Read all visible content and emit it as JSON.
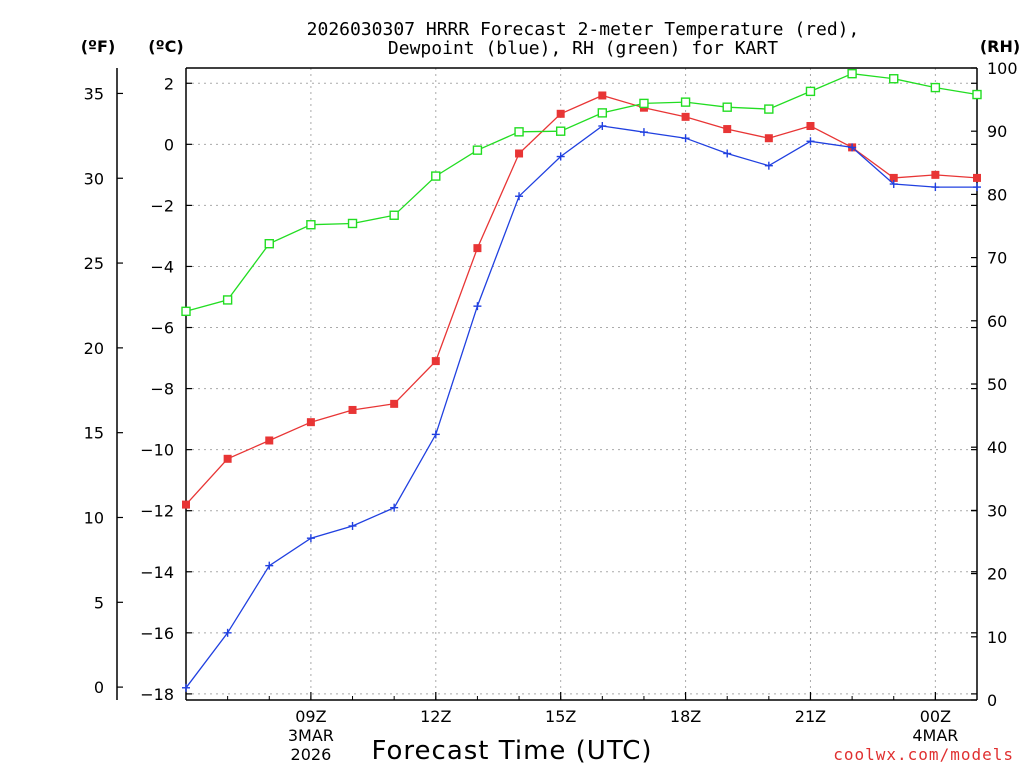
{
  "chart_data": {
    "type": "line",
    "title_line1": "2026030307 HRRR Forecast 2-meter Temperature (red),",
    "title_line2": "Dewpoint (blue), RH (green) for KART",
    "xlabel": "Forecast Time (UTC)",
    "units": {
      "fahrenheit": "(ºF)",
      "celsius": "(ºC)",
      "rh": "(RH)"
    },
    "x_hours": [
      6,
      7,
      8,
      9,
      10,
      11,
      12,
      13,
      14,
      15,
      16,
      17,
      18,
      19,
      20,
      21,
      22,
      23,
      24,
      25
    ],
    "x_ticks": [
      {
        "hour": 9,
        "label": "09Z",
        "sub1": "3MAR",
        "sub2": "2026"
      },
      {
        "hour": 12,
        "label": "12Z"
      },
      {
        "hour": 15,
        "label": "15Z"
      },
      {
        "hour": 18,
        "label": "18Z"
      },
      {
        "hour": 21,
        "label": "21Z"
      },
      {
        "hour": 24,
        "label": "00Z",
        "sub1": "4MAR"
      }
    ],
    "xlim": [
      6,
      25
    ],
    "left_axis_c": {
      "ylim": [
        -18.2,
        2.5
      ],
      "ticks": [
        2,
        0,
        -2,
        -4,
        -6,
        -8,
        -10,
        -12,
        -14,
        -16,
        -18
      ]
    },
    "left_axis_f": {
      "ticks": [
        35,
        30,
        25,
        20,
        15,
        10,
        5,
        0
      ]
    },
    "right_axis_rh": {
      "ylim": [
        0,
        100
      ],
      "ticks": [
        100,
        90,
        80,
        70,
        60,
        50,
        40,
        30,
        20,
        10,
        0
      ]
    },
    "series": [
      {
        "name": "Temperature",
        "color": "#e83535",
        "marker": "filled-square",
        "axis": "C",
        "values": [
          -11.8,
          -10.3,
          -9.7,
          -9.1,
          -8.7,
          -8.5,
          -7.1,
          -3.4,
          -0.3,
          1.0,
          1.6,
          1.2,
          0.9,
          0.5,
          0.2,
          0.6,
          -0.1,
          -1.1,
          -1.0,
          -1.1
        ]
      },
      {
        "name": "Dewpoint",
        "color": "#2040e0",
        "marker": "plus",
        "axis": "C",
        "values": [
          -17.8,
          -16.0,
          -13.8,
          -12.9,
          -12.5,
          -11.9,
          -9.5,
          -5.3,
          -1.7,
          -0.4,
          0.6,
          0.4,
          0.2,
          -0.3,
          -0.7,
          0.1,
          -0.1,
          -1.3,
          -1.4,
          -1.4
        ]
      },
      {
        "name": "RH",
        "color": "#22dd22",
        "marker": "open-square",
        "axis": "RH",
        "values": [
          61.5,
          63.3,
          72.2,
          75.2,
          75.4,
          76.7,
          82.9,
          87.0,
          89.9,
          90.0,
          92.9,
          94.4,
          94.6,
          93.8,
          93.5,
          96.3,
          99.1,
          98.3,
          96.9,
          95.8
        ]
      }
    ]
  },
  "credit": "coolwx.com/models",
  "colors": {
    "credit": "#e03030",
    "axes": "#000000",
    "grid": "#aaaaaa"
  }
}
